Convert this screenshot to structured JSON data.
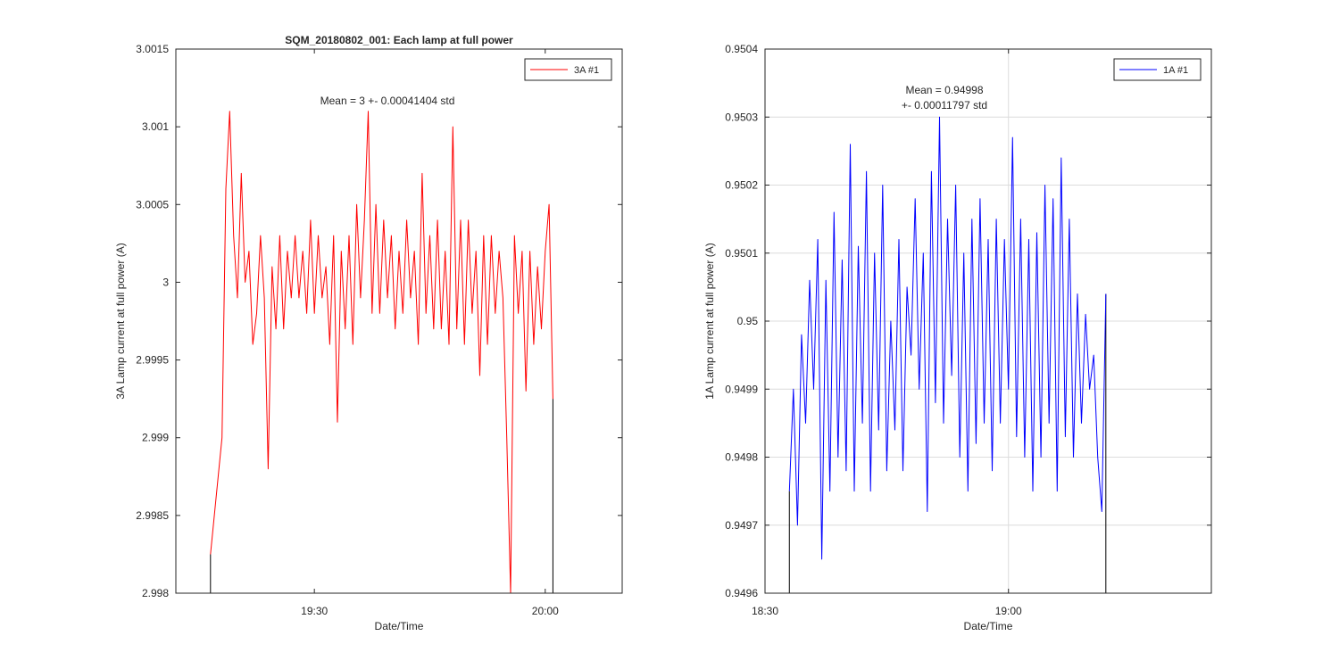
{
  "chart_data": [
    {
      "type": "line",
      "title": "SQM_20180802_001: Each lamp at full power",
      "xlabel": "Date/Time",
      "ylabel": "3A Lamp current at full power (A)",
      "x_ticks": [
        "19:30",
        "20:00"
      ],
      "y_ticks": [
        "2.998",
        "2.9985",
        "2.999",
        "2.9995",
        "3",
        "3.0005",
        "3.001",
        "3.0015"
      ],
      "ylim": [
        2.998,
        3.0015
      ],
      "xlim": [
        "19:12",
        "20:10"
      ],
      "grid": false,
      "legend_position": "top-right",
      "annotation": "Mean = 3 +- 0.00041404 std",
      "series": [
        {
          "name": "3A #1",
          "color": "#ff0000",
          "x": [
            "19:16:30",
            "19:18:00",
            "19:18:30",
            "19:19:00",
            "19:19:30",
            "19:20:00",
            "19:20:30",
            "19:21:00",
            "19:21:30",
            "19:22:00",
            "19:22:30",
            "19:23:00",
            "19:23:30",
            "19:24:00",
            "19:24:30",
            "19:25:00",
            "19:25:30",
            "19:26:00",
            "19:26:30",
            "19:27:00",
            "19:27:30",
            "19:28:00",
            "19:28:30",
            "19:29:00",
            "19:29:30",
            "19:30:00",
            "19:30:30",
            "19:31:00",
            "19:31:30",
            "19:32:00",
            "19:32:30",
            "19:33:00",
            "19:33:30",
            "19:34:00",
            "19:34:30",
            "19:35:00",
            "19:35:30",
            "19:36:00",
            "19:36:30",
            "19:37:00",
            "19:37:30",
            "19:38:00",
            "19:38:30",
            "19:39:00",
            "19:39:30",
            "19:40:00",
            "19:40:30",
            "19:41:00",
            "19:41:30",
            "19:42:00",
            "19:42:30",
            "19:43:00",
            "19:43:30",
            "19:44:00",
            "19:44:30",
            "19:45:00",
            "19:45:30",
            "19:46:00",
            "19:46:30",
            "19:47:00",
            "19:47:30",
            "19:48:00",
            "19:48:30",
            "19:49:00",
            "19:49:30",
            "19:50:00",
            "19:50:30",
            "19:51:00",
            "19:51:30",
            "19:52:00",
            "19:52:30",
            "19:53:00",
            "19:53:30",
            "19:54:00",
            "19:54:30",
            "19:55:00",
            "19:55:30",
            "19:56:00",
            "19:56:30",
            "19:57:00",
            "19:57:30",
            "19:58:00",
            "19:58:30",
            "19:59:00",
            "19:59:30",
            "20:00:00",
            "20:00:30",
            "20:01:00"
          ],
          "y": [
            2.99825,
            2.999,
            3.0006,
            3.0011,
            3.0003,
            2.9999,
            3.0007,
            3.0,
            3.0002,
            2.9996,
            2.9998,
            3.0003,
            2.9999,
            2.9988,
            3.0001,
            2.9997,
            3.0003,
            2.9997,
            3.0002,
            2.9999,
            3.0003,
            2.9999,
            3.0002,
            2.9998,
            3.0004,
            2.9998,
            3.0003,
            2.9999,
            3.0001,
            2.9996,
            3.0003,
            2.9991,
            3.0002,
            2.9997,
            3.0003,
            2.9996,
            3.0005,
            2.9999,
            3.0004,
            3.0011,
            2.9998,
            3.0005,
            2.9998,
            3.0004,
            2.9999,
            3.0003,
            2.9997,
            3.0002,
            2.9998,
            3.0004,
            2.9999,
            3.0002,
            2.9996,
            3.0007,
            2.9998,
            3.0003,
            2.9997,
            3.0004,
            2.9997,
            3.0002,
            2.9996,
            3.001,
            2.9997,
            3.0004,
            2.9996,
            3.0004,
            2.9998,
            3.0002,
            2.9994,
            3.0003,
            2.9996,
            3.0003,
            2.9998,
            3.0002,
            2.9999,
            2.999,
            2.998,
            3.0003,
            2.9998,
            3.0002,
            2.9993,
            3.0002,
            2.9996,
            3.0001,
            2.9997,
            3.0002,
            3.0005,
            2.99925
          ]
        }
      ]
    },
    {
      "type": "line",
      "title": "",
      "xlabel": "Date/Time",
      "ylabel": "1A Lamp current at full power (A)",
      "x_ticks": [
        "18:30",
        "19:00"
      ],
      "y_ticks": [
        "0.9496",
        "0.9497",
        "0.9498",
        "0.9499",
        "0.95",
        "0.9501",
        "0.9502",
        "0.9503",
        "0.9504"
      ],
      "ylim": [
        0.9496,
        0.9504
      ],
      "xlim": [
        "18:30",
        "19:25"
      ],
      "grid": true,
      "legend_position": "top-right",
      "annotation": [
        "Mean = 0.94998",
        "+- 0.00011797 std"
      ],
      "series": [
        {
          "name": "1A #1",
          "color": "#0000ff",
          "x": [
            "18:33:00",
            "18:33:30",
            "18:34:00",
            "18:34:30",
            "18:35:00",
            "18:35:30",
            "18:36:00",
            "18:36:30",
            "18:37:00",
            "18:37:30",
            "18:38:00",
            "18:38:30",
            "18:39:00",
            "18:39:30",
            "18:40:00",
            "18:40:30",
            "18:41:00",
            "18:41:30",
            "18:42:00",
            "18:42:30",
            "18:43:00",
            "18:43:30",
            "18:44:00",
            "18:44:30",
            "18:45:00",
            "18:45:30",
            "18:46:00",
            "18:46:30",
            "18:47:00",
            "18:47:30",
            "18:48:00",
            "18:48:30",
            "18:49:00",
            "18:49:30",
            "18:50:00",
            "18:50:30",
            "18:51:00",
            "18:51:30",
            "18:52:00",
            "18:52:30",
            "18:53:00",
            "18:53:30",
            "18:54:00",
            "18:54:30",
            "18:55:00",
            "18:55:30",
            "18:56:00",
            "18:56:30",
            "18:57:00",
            "18:57:30",
            "18:58:00",
            "18:58:30",
            "18:59:00",
            "18:59:30",
            "19:00:00",
            "19:00:30",
            "19:01:00",
            "19:01:30",
            "19:02:00",
            "19:02:30",
            "19:03:00",
            "19:03:30",
            "19:04:00",
            "19:04:30",
            "19:05:00",
            "19:05:30",
            "19:06:00",
            "19:06:30",
            "19:07:00",
            "19:07:30",
            "19:08:00",
            "19:08:30",
            "19:09:00",
            "19:09:30",
            "19:10:00",
            "19:10:30",
            "19:11:00",
            "19:11:30",
            "19:12:00"
          ],
          "y": [
            0.94975,
            0.9499,
            0.9497,
            0.94998,
            0.94985,
            0.95006,
            0.9499,
            0.95012,
            0.94965,
            0.95006,
            0.94975,
            0.95016,
            0.9498,
            0.95009,
            0.94978,
            0.95026,
            0.94975,
            0.95011,
            0.94985,
            0.95022,
            0.94975,
            0.9501,
            0.94984,
            0.9502,
            0.94978,
            0.95,
            0.94984,
            0.95012,
            0.94978,
            0.95005,
            0.94995,
            0.95018,
            0.9499,
            0.9501,
            0.94972,
            0.95022,
            0.94988,
            0.9503,
            0.94985,
            0.95015,
            0.94992,
            0.9502,
            0.9498,
            0.9501,
            0.94975,
            0.95015,
            0.94982,
            0.95018,
            0.94985,
            0.95012,
            0.94978,
            0.95015,
            0.94985,
            0.95012,
            0.9499,
            0.95027,
            0.94983,
            0.95015,
            0.9498,
            0.95012,
            0.94975,
            0.95013,
            0.9498,
            0.9502,
            0.94985,
            0.95018,
            0.94975,
            0.95024,
            0.94983,
            0.95015,
            0.9498,
            0.95004,
            0.94985,
            0.95001,
            0.9499,
            0.94995,
            0.9498,
            0.94972,
            0.95004
          ]
        }
      ]
    }
  ]
}
